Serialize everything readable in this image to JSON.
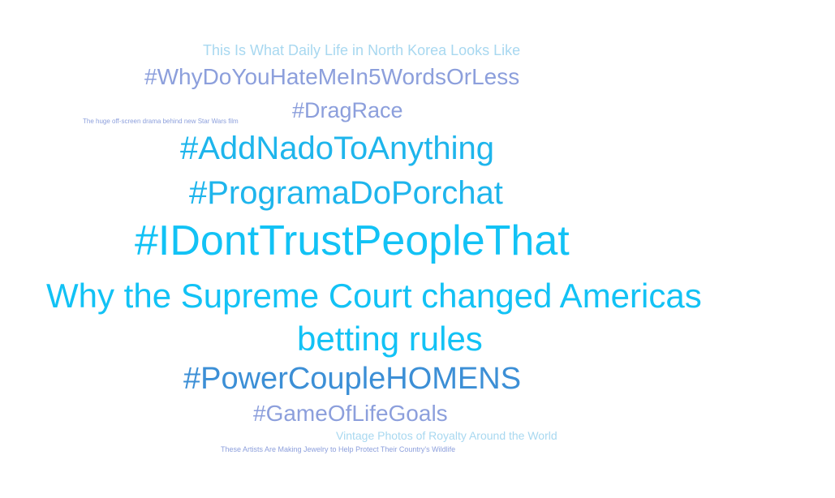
{
  "cloud": {
    "words": [
      {
        "text": "This Is What Daily Life in North Korea Looks Like",
        "color": "#a8d8f0"
      },
      {
        "text": "#WhyDoYouHateMeIn5WordsOrLess",
        "color": "#8c9fdc"
      },
      {
        "text": "The huge off-screen drama behind new Star Wars film",
        "color": "#8c9fdc"
      },
      {
        "text": "#DragRace",
        "color": "#8c9fdc"
      },
      {
        "text": "#AddNadoToAnything",
        "color": "#1eb5ec"
      },
      {
        "text": "#ProgramaDoPorchat",
        "color": "#1eb5ec"
      },
      {
        "text": "#IDontTrustPeopleThat",
        "color": "#12c2f5"
      },
      {
        "text": "Why the Supreme Court changed Americas",
        "color": "#12c2f5"
      },
      {
        "text": "betting rules",
        "color": "#12c2f5"
      },
      {
        "text": "#PowerCoupleHOMENS",
        "color": "#3c8fd6"
      },
      {
        "text": "#GameOfLifeGoals",
        "color": "#8c9fdc"
      },
      {
        "text": "Vintage Photos of Royalty Around the World",
        "color": "#a8d8f0"
      },
      {
        "text": "These Artists Are Making Jewelry to Help Protect Their Country's Wildlife",
        "color": "#8c9fdc"
      }
    ]
  }
}
